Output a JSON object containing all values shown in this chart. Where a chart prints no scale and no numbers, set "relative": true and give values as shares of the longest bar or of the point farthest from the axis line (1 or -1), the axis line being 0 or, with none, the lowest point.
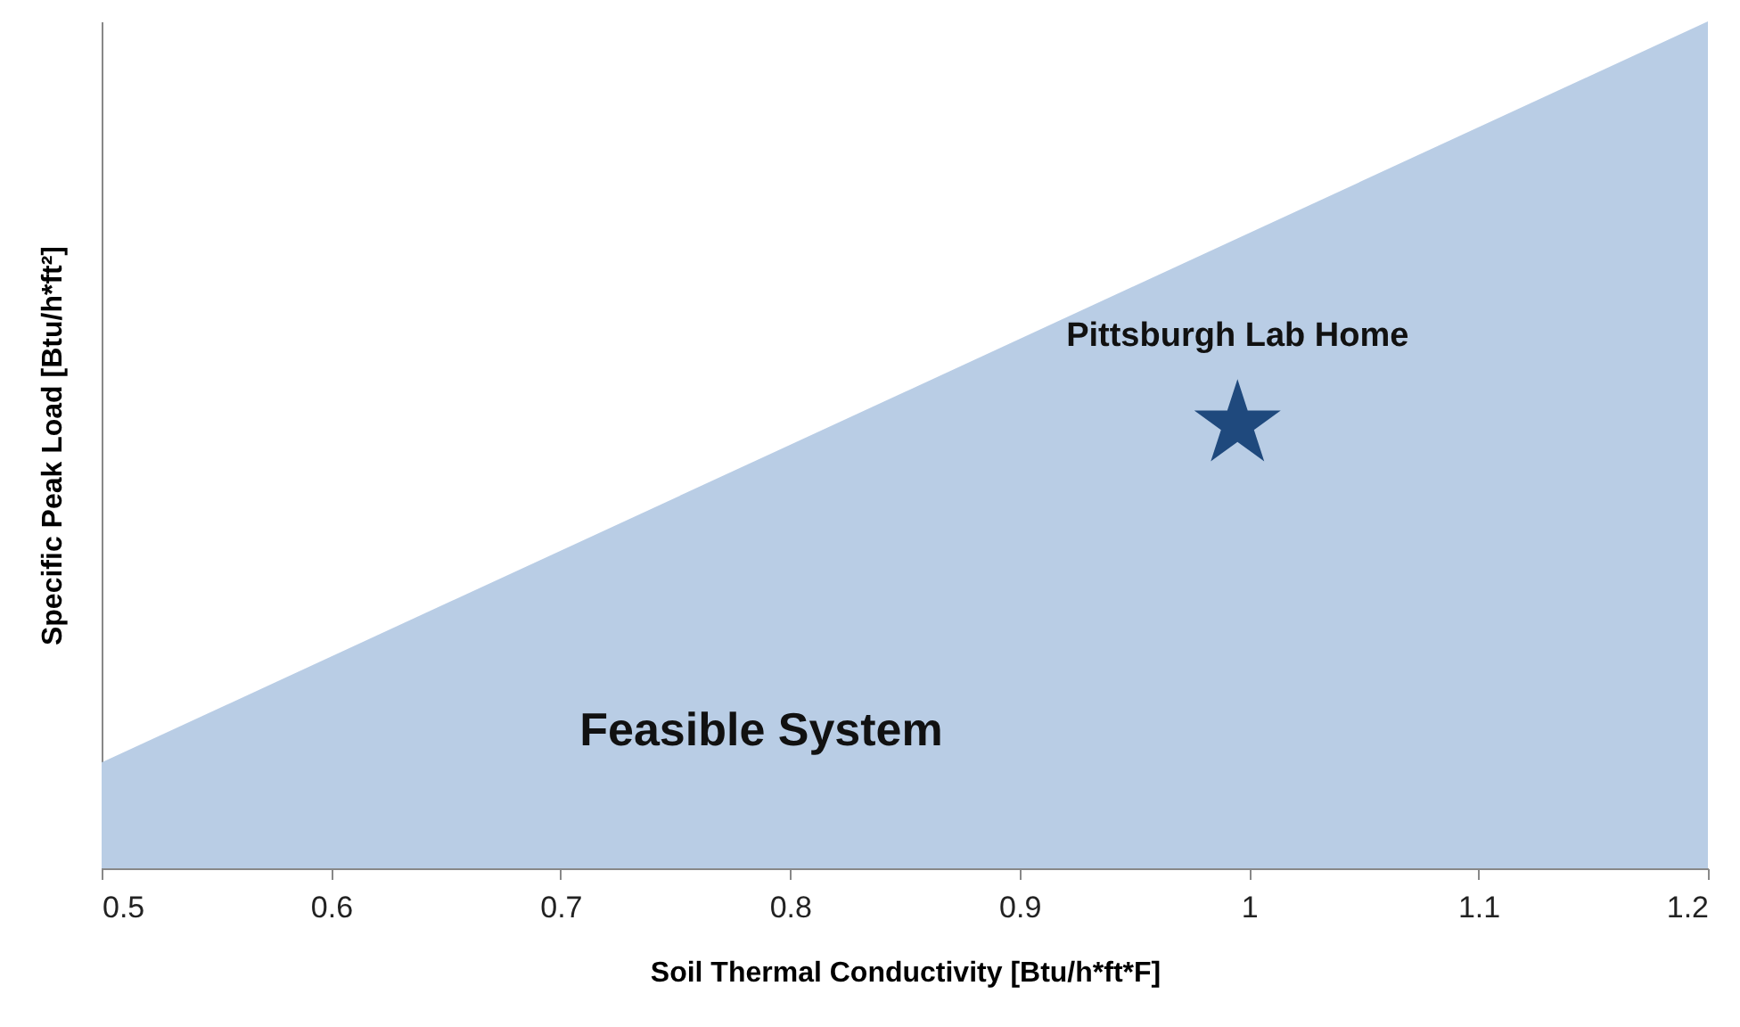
{
  "chart_data": {
    "type": "area",
    "xlabel": "Soil Thermal Conductivity [Btu/h*ft*F]",
    "ylabel": "Specific Peak Load [Btu/h*ft²]",
    "relative": true,
    "x": [
      0.5,
      1.2
    ],
    "xlim": [
      0.5,
      1.2
    ],
    "xticks": [
      0.5,
      0.6,
      0.7,
      0.8,
      0.9,
      1,
      1.1,
      1.2
    ],
    "tick_labels": "x",
    "annotations": [
      "Feasible System"
    ],
    "series": [
      {
        "color": "#b9cde5",
        "values": [
          0.125,
          1
        ]
      },
      {
        "name": "Pittsburgh Lab Home",
        "type": "scatter",
        "marker": "star",
        "x": [
          0.995
        ],
        "values": [
          0.524
        ],
        "color": "#1f497d"
      }
    ]
  }
}
